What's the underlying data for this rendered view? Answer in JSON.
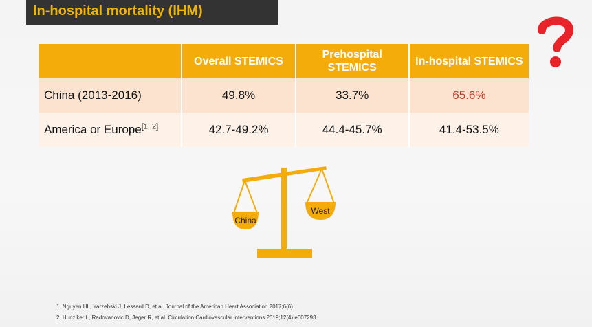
{
  "slide": {
    "title": "In-hospital mortality (IHM)",
    "colors": {
      "accent": "#f4ac0a",
      "title_bg": "#333333",
      "title_text": "#f1b400",
      "highlight": "#c0392b",
      "question_mark": "#e8242a"
    }
  },
  "table": {
    "headers": [
      "",
      "Overall STEMICS",
      "Prehospital STEMICS",
      "In-hospital STEMICS"
    ],
    "rows": [
      {
        "label": "China (2013-2016)",
        "label_sup": "",
        "values": [
          "49.8%",
          "33.7%",
          "65.6%"
        ]
      },
      {
        "label": "America or Europe",
        "label_sup": "[1, 2]",
        "values": [
          "42.7-49.2%",
          "44.4-45.7%",
          "41.4-53.5%"
        ]
      }
    ]
  },
  "scale": {
    "left_pan_label": "China",
    "right_pan_label": "West"
  },
  "references": [
    "1. Nguyen HL, Yarzebski J, Lessard D, et al. Journal of the American Heart Association 2017;6(6).",
    "2. Hunziker L, Radovanovic D, Jeger R, et al. Circulation Cardiovascular interventions 2019;12(4):e007293."
  ],
  "icons": [
    "question-mark-icon",
    "balance-scale-icon"
  ]
}
